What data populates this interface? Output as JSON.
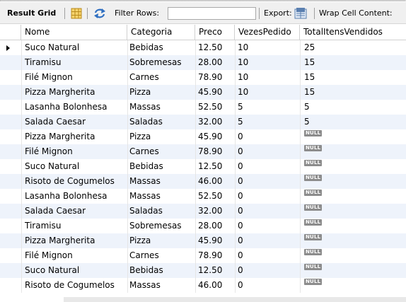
{
  "toolbar": {
    "result_grid": "Result Grid",
    "filter_rows": "Filter Rows:",
    "filter_value": "",
    "export": "Export:",
    "wrap_cell": "Wrap Cell Content:"
  },
  "columns": [
    "Nome",
    "Categoria",
    "Preco",
    "VezesPedido",
    "TotalItensVendidos"
  ],
  "null_label": "NULL",
  "rows": [
    [
      "Suco Natural",
      "Bebidas",
      "12.50",
      "10",
      "25"
    ],
    [
      "Tiramisu",
      "Sobremesas",
      "28.00",
      "10",
      "15"
    ],
    [
      "Filé Mignon",
      "Carnes",
      "78.90",
      "10",
      "15"
    ],
    [
      "Pizza Margherita",
      "Pizza",
      "45.90",
      "10",
      "15"
    ],
    [
      "Lasanha Bolonhesa",
      "Massas",
      "52.50",
      "5",
      "5"
    ],
    [
      "Salada Caesar",
      "Saladas",
      "32.00",
      "5",
      "5"
    ],
    [
      "Pizza Margherita",
      "Pizza",
      "45.90",
      "0",
      null
    ],
    [
      "Filé Mignon",
      "Carnes",
      "78.90",
      "0",
      null
    ],
    [
      "Suco Natural",
      "Bebidas",
      "12.50",
      "0",
      null
    ],
    [
      "Risoto de Cogumelos",
      "Massas",
      "46.00",
      "0",
      null
    ],
    [
      "Lasanha Bolonhesa",
      "Massas",
      "52.50",
      "0",
      null
    ],
    [
      "Salada Caesar",
      "Saladas",
      "32.00",
      "0",
      null
    ],
    [
      "Tiramisu",
      "Sobremesas",
      "28.00",
      "0",
      null
    ],
    [
      "Pizza Margherita",
      "Pizza",
      "45.90",
      "0",
      null
    ],
    [
      "Filé Mignon",
      "Carnes",
      "78.90",
      "0",
      null
    ],
    [
      "Suco Natural",
      "Bebidas",
      "12.50",
      "0",
      null
    ],
    [
      "Risoto de Cogumelos",
      "Massas",
      "46.00",
      "0",
      null
    ]
  ],
  "selected_row": 0,
  "colors": {
    "alt_row": "#eef3fb",
    "null_badge": "#8c8c8c"
  }
}
